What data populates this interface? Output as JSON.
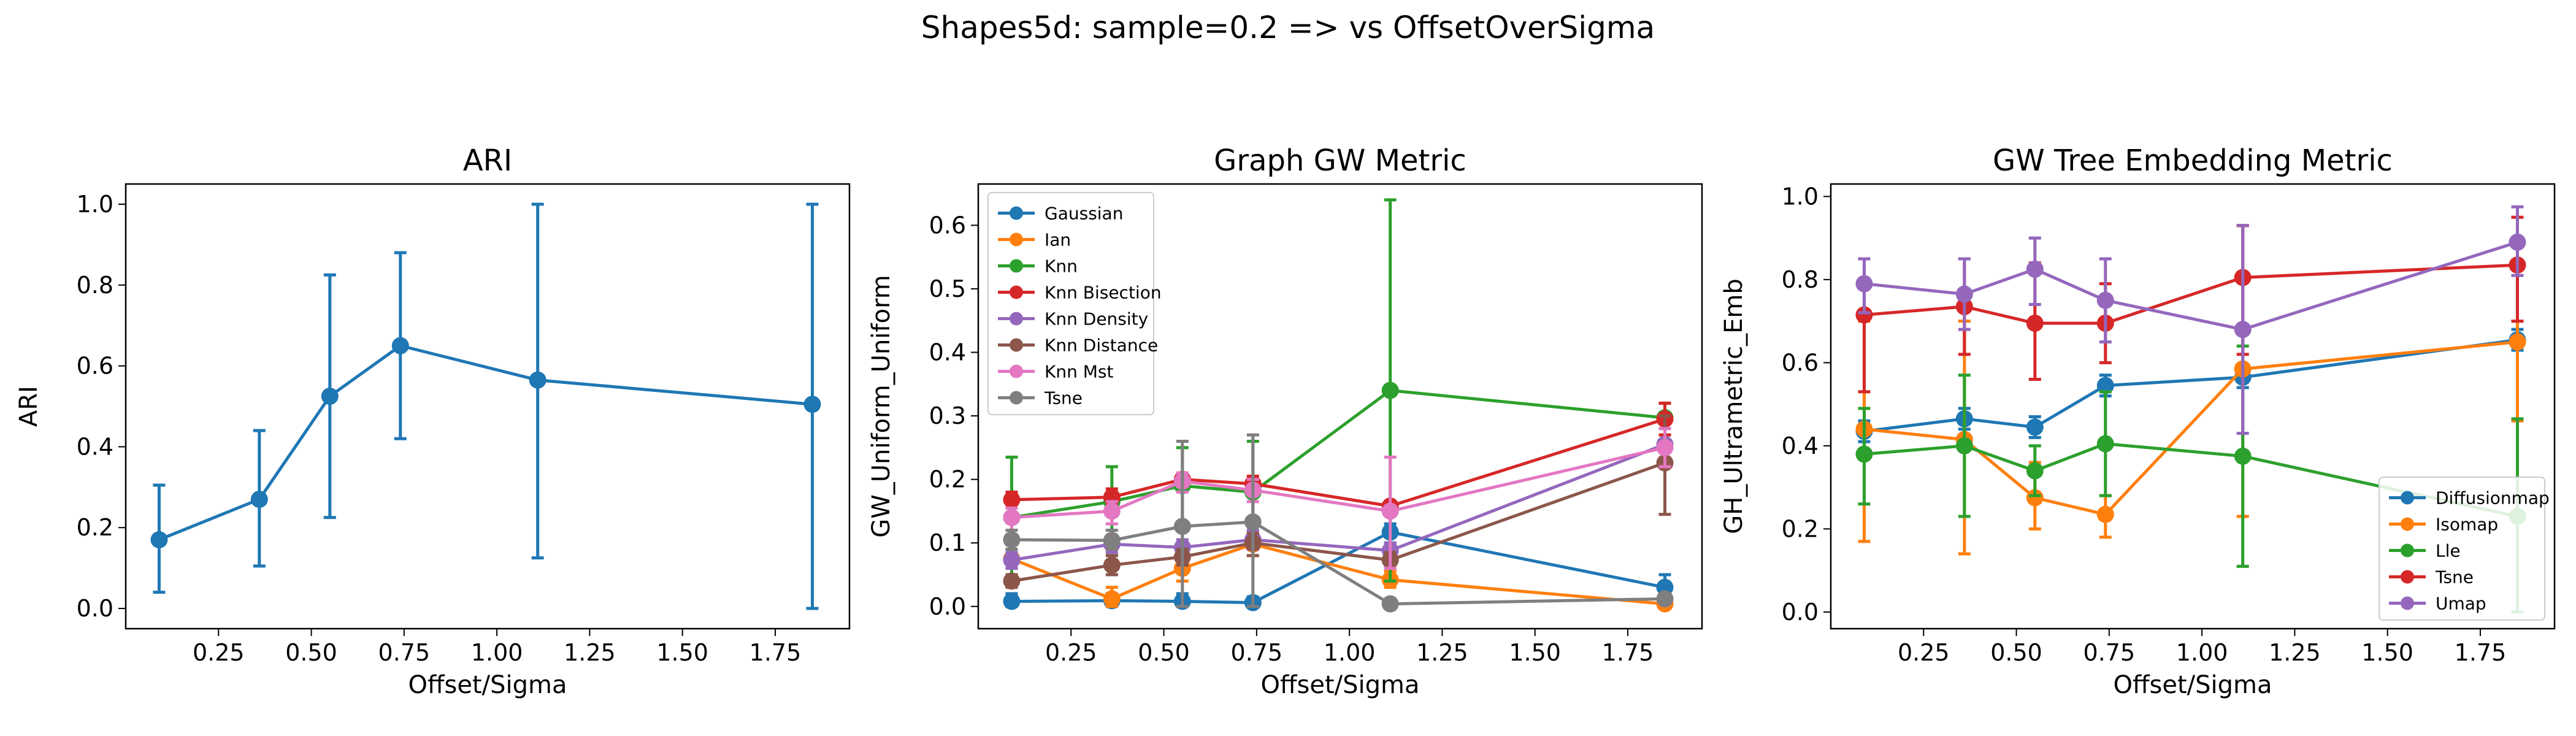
{
  "figure": {
    "suptitle": "Shapes5d: sample=0.2 => vs OffsetOverSigma"
  },
  "chart_data": [
    {
      "type": "line",
      "title": "ARI",
      "xlabel": "Offset/Sigma",
      "ylabel": "ARI",
      "xlim": [
        0.0,
        1.95
      ],
      "ylim": [
        -0.05,
        1.05
      ],
      "xticks": [
        0.25,
        0.5,
        0.75,
        1.0,
        1.25,
        1.5,
        1.75
      ],
      "xtick_labels": [
        "0.25",
        "0.50",
        "0.75",
        "1.00",
        "1.25",
        "1.50",
        "1.75"
      ],
      "yticks": [
        0.0,
        0.2,
        0.4,
        0.6,
        0.8,
        1.0
      ],
      "ytick_labels": [
        "0.0",
        "0.2",
        "0.4",
        "0.6",
        "0.8",
        "1.0"
      ],
      "legend": null,
      "x": [
        0.09,
        0.36,
        0.55,
        0.74,
        1.11,
        1.85
      ],
      "series": [
        {
          "name": "",
          "color": "#1f77b4",
          "values": [
            0.17,
            0.27,
            0.525,
            0.65,
            0.565,
            0.505
          ],
          "err_low": [
            0.04,
            0.105,
            0.225,
            0.42,
            0.125,
            0.0
          ],
          "err_high": [
            0.305,
            0.44,
            0.825,
            0.88,
            1.0,
            1.0
          ]
        }
      ]
    },
    {
      "type": "line",
      "title": "Graph GW Metric",
      "xlabel": "Offset/Sigma",
      "ylabel": "GW_Uniform_Uniform",
      "xlim": [
        0.0,
        1.95
      ],
      "ylim": [
        -0.035,
        0.665
      ],
      "xticks": [
        0.25,
        0.5,
        0.75,
        1.0,
        1.25,
        1.5,
        1.75
      ],
      "xtick_labels": [
        "0.25",
        "0.50",
        "0.75",
        "1.00",
        "1.25",
        "1.50",
        "1.75"
      ],
      "yticks": [
        0.0,
        0.1,
        0.2,
        0.3,
        0.4,
        0.5,
        0.6
      ],
      "ytick_labels": [
        "0.0",
        "0.1",
        "0.2",
        "0.3",
        "0.4",
        "0.5",
        "0.6"
      ],
      "legend": "top-left",
      "x": [
        0.09,
        0.36,
        0.55,
        0.74,
        1.11,
        1.85
      ],
      "series": [
        {
          "name": "Gaussian",
          "color": "#1f77b4",
          "values": [
            0.008,
            0.009,
            0.008,
            0.006,
            0.117,
            0.03
          ],
          "err_low": [
            0.0,
            0.0,
            0.0,
            0.0,
            0.1,
            0.015
          ],
          "err_high": [
            0.02,
            0.02,
            0.02,
            0.015,
            0.13,
            0.05
          ]
        },
        {
          "name": "Ian",
          "color": "#ff7f0e",
          "values": [
            0.075,
            0.012,
            0.06,
            0.098,
            0.042,
            0.004
          ],
          "err_low": [
            0.06,
            0.0,
            0.04,
            0.08,
            0.03,
            0.0
          ],
          "err_high": [
            0.09,
            0.03,
            0.08,
            0.115,
            0.055,
            0.012
          ]
        },
        {
          "name": "Knn",
          "color": "#2ca02c",
          "values": [
            0.14,
            0.165,
            0.19,
            0.18,
            0.34,
            0.297
          ],
          "err_low": [
            0.05,
            0.1,
            0.13,
            0.1,
            0.04,
            0.27
          ],
          "err_high": [
            0.235,
            0.22,
            0.25,
            0.26,
            0.64,
            0.32
          ]
        },
        {
          "name": "Knn Bisection",
          "color": "#d62728",
          "values": [
            0.168,
            0.172,
            0.2,
            0.193,
            0.158,
            0.295
          ],
          "err_low": [
            0.155,
            0.16,
            0.19,
            0.18,
            0.15,
            0.27
          ],
          "err_high": [
            0.18,
            0.185,
            0.21,
            0.205,
            0.165,
            0.32
          ]
        },
        {
          "name": "Knn Density",
          "color": "#9467bd",
          "values": [
            0.073,
            0.098,
            0.093,
            0.105,
            0.088,
            0.255
          ],
          "err_low": [
            0.06,
            0.085,
            0.08,
            0.09,
            0.075,
            0.23
          ],
          "err_high": [
            0.085,
            0.11,
            0.105,
            0.12,
            0.1,
            0.28
          ]
        },
        {
          "name": "Knn Distance",
          "color": "#8c564b",
          "values": [
            0.04,
            0.065,
            0.078,
            0.1,
            0.073,
            0.226
          ],
          "err_low": [
            0.03,
            0.05,
            0.065,
            0.08,
            0.06,
            0.145
          ],
          "err_high": [
            0.05,
            0.08,
            0.09,
            0.115,
            0.085,
            0.3
          ]
        },
        {
          "name": "Knn Mst",
          "color": "#e377c2",
          "values": [
            0.14,
            0.15,
            0.197,
            0.183,
            0.15,
            0.25
          ],
          "err_low": [
            0.12,
            0.13,
            0.18,
            0.165,
            0.06,
            0.22
          ],
          "err_high": [
            0.155,
            0.165,
            0.21,
            0.2,
            0.235,
            0.28
          ]
        },
        {
          "name": "Tsne",
          "color": "#7f7f7f",
          "values": [
            0.105,
            0.104,
            0.126,
            0.133,
            0.004,
            0.012
          ],
          "err_low": [
            0.09,
            0.09,
            0.0,
            0.0,
            0.0,
            0.005
          ],
          "err_high": [
            0.12,
            0.12,
            0.26,
            0.27,
            0.01,
            0.02
          ]
        }
      ]
    },
    {
      "type": "line",
      "title": "GW Tree Embedding Metric",
      "xlabel": "Offset/Sigma",
      "ylabel": "GH_Ultrametric_Emb",
      "xlim": [
        0.0,
        1.95
      ],
      "ylim": [
        -0.04,
        1.03
      ],
      "xticks": [
        0.25,
        0.5,
        0.75,
        1.0,
        1.25,
        1.5,
        1.75
      ],
      "xtick_labels": [
        "0.25",
        "0.50",
        "0.75",
        "1.00",
        "1.25",
        "1.50",
        "1.75"
      ],
      "yticks": [
        0.0,
        0.2,
        0.4,
        0.6,
        0.8,
        1.0
      ],
      "ytick_labels": [
        "0.0",
        "0.2",
        "0.4",
        "0.6",
        "0.8",
        "1.0"
      ],
      "legend": "bottom-right",
      "x": [
        0.09,
        0.36,
        0.55,
        0.74,
        1.11,
        1.85
      ],
      "series": [
        {
          "name": "Diffusionmap",
          "color": "#1f77b4",
          "values": [
            0.435,
            0.465,
            0.445,
            0.545,
            0.565,
            0.655
          ],
          "err_low": [
            0.41,
            0.44,
            0.42,
            0.52,
            0.54,
            0.63
          ],
          "err_high": [
            0.46,
            0.49,
            0.47,
            0.57,
            0.59,
            0.68
          ]
        },
        {
          "name": "Isomap",
          "color": "#ff7f0e",
          "values": [
            0.44,
            0.415,
            0.275,
            0.235,
            0.585,
            0.65
          ],
          "err_low": [
            0.17,
            0.14,
            0.2,
            0.18,
            0.23,
            0.46
          ],
          "err_high": [
            0.7,
            0.7,
            0.36,
            0.28,
            0.93,
            0.84
          ]
        },
        {
          "name": "Lle",
          "color": "#2ca02c",
          "values": [
            0.38,
            0.4,
            0.34,
            0.405,
            0.375,
            0.23
          ],
          "err_low": [
            0.26,
            0.23,
            0.28,
            0.28,
            0.11,
            0.0
          ],
          "err_high": [
            0.49,
            0.57,
            0.4,
            0.53,
            0.64,
            0.465
          ]
        },
        {
          "name": "Tsne",
          "color": "#d62728",
          "values": [
            0.715,
            0.735,
            0.695,
            0.695,
            0.805,
            0.835
          ],
          "err_low": [
            0.53,
            0.62,
            0.56,
            0.6,
            0.62,
            0.7
          ],
          "err_high": [
            0.85,
            0.85,
            0.84,
            0.79,
            0.93,
            0.95
          ]
        },
        {
          "name": "Umap",
          "color": "#9467bd",
          "values": [
            0.79,
            0.765,
            0.825,
            0.75,
            0.68,
            0.89
          ],
          "err_low": [
            0.72,
            0.68,
            0.74,
            0.65,
            0.43,
            0.81
          ],
          "err_high": [
            0.85,
            0.85,
            0.9,
            0.85,
            0.93,
            0.975
          ]
        }
      ]
    }
  ]
}
